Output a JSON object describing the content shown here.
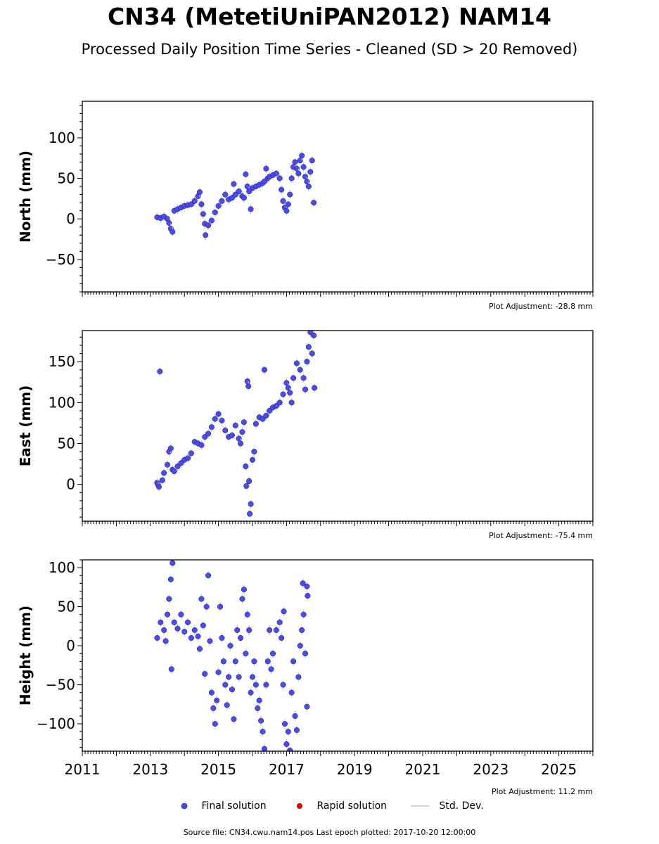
{
  "header": {
    "title": "CN34 (MetetiUniPAN2012) NAM14",
    "subtitle": "Processed Daily Position Time Series - Cleaned (SD > 20 Removed)"
  },
  "colors": {
    "final": "#4a4af5",
    "rapid": "#e00000",
    "stddev": "#c8c8c8",
    "edge": "#1a1a4a"
  },
  "legend": {
    "final": "Final solution",
    "rapid": "Rapid solution",
    "stddev": "Std. Dev."
  },
  "footer": {
    "source": "Source file: CN34.cwu.nam14.pos  Last epoch plotted: 2017-10-20 12:00:00"
  },
  "chart_data": [
    {
      "type": "scatter",
      "id": "north",
      "ylabel": "North (mm)",
      "adjustment": "Plot Adjustment: -28.8 mm",
      "xlim": [
        2011,
        2026
      ],
      "ylim": [
        -90,
        145
      ],
      "yticks": [
        -50,
        0,
        50,
        100
      ],
      "x_tick_labels_shown": false,
      "series": [
        {
          "values": [
            [
              2013.2,
              2
            ],
            [
              2013.3,
              1
            ],
            [
              2013.4,
              3
            ],
            [
              2013.5,
              0
            ],
            [
              2013.55,
              -5
            ],
            [
              2013.6,
              -12
            ],
            [
              2013.65,
              -16
            ],
            [
              2013.7,
              10
            ],
            [
              2013.8,
              12
            ],
            [
              2013.9,
              14
            ],
            [
              2014.0,
              16
            ],
            [
              2014.1,
              17
            ],
            [
              2014.2,
              18
            ],
            [
              2014.3,
              22
            ],
            [
              2014.4,
              28
            ],
            [
              2014.45,
              33
            ],
            [
              2014.5,
              18
            ],
            [
              2014.55,
              6
            ],
            [
              2014.6,
              -6
            ],
            [
              2014.62,
              -20
            ],
            [
              2014.7,
              -8
            ],
            [
              2014.8,
              -2
            ],
            [
              2014.9,
              8
            ],
            [
              2015.0,
              16
            ],
            [
              2015.1,
              22
            ],
            [
              2015.2,
              30
            ],
            [
              2015.3,
              24
            ],
            [
              2015.4,
              26
            ],
            [
              2015.45,
              43
            ],
            [
              2015.5,
              30
            ],
            [
              2015.6,
              34
            ],
            [
              2015.7,
              28
            ],
            [
              2015.75,
              26
            ],
            [
              2015.8,
              55
            ],
            [
              2015.85,
              40
            ],
            [
              2015.9,
              34
            ],
            [
              2015.95,
              12
            ],
            [
              2016.0,
              38
            ],
            [
              2016.1,
              40
            ],
            [
              2016.2,
              42
            ],
            [
              2016.3,
              44
            ],
            [
              2016.35,
              46
            ],
            [
              2016.4,
              62
            ],
            [
              2016.45,
              50
            ],
            [
              2016.5,
              52
            ],
            [
              2016.6,
              54
            ],
            [
              2016.7,
              56
            ],
            [
              2016.8,
              50
            ],
            [
              2016.85,
              36
            ],
            [
              2016.9,
              22
            ],
            [
              2016.95,
              14
            ],
            [
              2017.0,
              10
            ],
            [
              2017.05,
              18
            ],
            [
              2017.1,
              30
            ],
            [
              2017.15,
              50
            ],
            [
              2017.2,
              64
            ],
            [
              2017.25,
              70
            ],
            [
              2017.3,
              62
            ],
            [
              2017.35,
              56
            ],
            [
              2017.4,
              72
            ],
            [
              2017.45,
              78
            ],
            [
              2017.5,
              64
            ],
            [
              2017.55,
              52
            ],
            [
              2017.6,
              46
            ],
            [
              2017.65,
              40
            ],
            [
              2017.7,
              58
            ],
            [
              2017.75,
              72
            ],
            [
              2017.8,
              20
            ]
          ]
        }
      ]
    },
    {
      "type": "scatter",
      "id": "east",
      "ylabel": "East (mm)",
      "adjustment": "Plot Adjustment: -75.4 mm",
      "xlim": [
        2011,
        2026
      ],
      "ylim": [
        -45,
        188
      ],
      "yticks": [
        0,
        50,
        100,
        150
      ],
      "x_tick_labels_shown": false,
      "series": [
        {
          "values": [
            [
              2013.2,
              2
            ],
            [
              2013.22,
              0
            ],
            [
              2013.25,
              -3
            ],
            [
              2013.28,
              138
            ],
            [
              2013.35,
              5
            ],
            [
              2013.4,
              14
            ],
            [
              2013.5,
              24
            ],
            [
              2013.55,
              40
            ],
            [
              2013.6,
              44
            ],
            [
              2013.65,
              18
            ],
            [
              2013.7,
              16
            ],
            [
              2013.8,
              22
            ],
            [
              2013.9,
              26
            ],
            [
              2014.0,
              30
            ],
            [
              2014.1,
              32
            ],
            [
              2014.2,
              38
            ],
            [
              2014.3,
              52
            ],
            [
              2014.4,
              50
            ],
            [
              2014.5,
              48
            ],
            [
              2014.6,
              58
            ],
            [
              2014.7,
              62
            ],
            [
              2014.8,
              70
            ],
            [
              2014.9,
              80
            ],
            [
              2015.0,
              86
            ],
            [
              2015.1,
              78
            ],
            [
              2015.2,
              66
            ],
            [
              2015.3,
              58
            ],
            [
              2015.4,
              60
            ],
            [
              2015.5,
              72
            ],
            [
              2015.6,
              56
            ],
            [
              2015.65,
              50
            ],
            [
              2015.7,
              64
            ],
            [
              2015.75,
              76
            ],
            [
              2015.8,
              22
            ],
            [
              2015.82,
              -2
            ],
            [
              2015.85,
              126
            ],
            [
              2015.88,
              120
            ],
            [
              2015.9,
              4
            ],
            [
              2015.95,
              -24
            ],
            [
              2015.92,
              -36
            ],
            [
              2016.0,
              30
            ],
            [
              2016.05,
              40
            ],
            [
              2016.1,
              74
            ],
            [
              2016.2,
              82
            ],
            [
              2016.3,
              80
            ],
            [
              2016.35,
              140
            ],
            [
              2016.4,
              84
            ],
            [
              2016.5,
              90
            ],
            [
              2016.6,
              94
            ],
            [
              2016.7,
              96
            ],
            [
              2016.8,
              100
            ],
            [
              2016.9,
              110
            ],
            [
              2017.0,
              124
            ],
            [
              2017.05,
              118
            ],
            [
              2017.1,
              112
            ],
            [
              2017.15,
              100
            ],
            [
              2017.2,
              130
            ],
            [
              2017.3,
              148
            ],
            [
              2017.4,
              140
            ],
            [
              2017.5,
              130
            ],
            [
              2017.55,
              116
            ],
            [
              2017.6,
              150
            ],
            [
              2017.65,
              168
            ],
            [
              2017.7,
              186
            ],
            [
              2017.75,
              160
            ],
            [
              2017.8,
              182
            ],
            [
              2017.82,
              118
            ]
          ]
        }
      ]
    },
    {
      "type": "scatter",
      "id": "height",
      "ylabel": "Height (mm)",
      "adjustment": "Plot Adjustment: 11.2 mm",
      "xlim": [
        2011,
        2026
      ],
      "ylim": [
        -135,
        110
      ],
      "yticks": [
        -100,
        -50,
        0,
        50,
        100
      ],
      "x_tick_labels_shown": true,
      "x_tick_labels": [
        "2011",
        "2013",
        "2015",
        "2017",
        "2019",
        "2021",
        "2023",
        "2025"
      ],
      "series": [
        {
          "values": [
            [
              2013.2,
              10
            ],
            [
              2013.3,
              30
            ],
            [
              2013.4,
              20
            ],
            [
              2013.45,
              6
            ],
            [
              2013.5,
              40
            ],
            [
              2013.55,
              60
            ],
            [
              2013.6,
              85
            ],
            [
              2013.65,
              106
            ],
            [
              2013.62,
              -30
            ],
            [
              2013.7,
              30
            ],
            [
              2013.8,
              22
            ],
            [
              2013.9,
              40
            ],
            [
              2014.0,
              18
            ],
            [
              2014.1,
              30
            ],
            [
              2014.2,
              10
            ],
            [
              2014.3,
              20
            ],
            [
              2014.4,
              12
            ],
            [
              2014.45,
              -4
            ],
            [
              2014.5,
              60
            ],
            [
              2014.55,
              26
            ],
            [
              2014.6,
              -36
            ],
            [
              2014.65,
              50
            ],
            [
              2014.7,
              90
            ],
            [
              2014.75,
              6
            ],
            [
              2014.8,
              -60
            ],
            [
              2014.85,
              -80
            ],
            [
              2014.9,
              -100
            ],
            [
              2014.95,
              -70
            ],
            [
              2015.0,
              -34
            ],
            [
              2015.05,
              50
            ],
            [
              2015.1,
              10
            ],
            [
              2015.15,
              -20
            ],
            [
              2015.2,
              -50
            ],
            [
              2015.25,
              -76
            ],
            [
              2015.3,
              -40
            ],
            [
              2015.35,
              0
            ],
            [
              2015.4,
              -56
            ],
            [
              2015.45,
              -94
            ],
            [
              2015.5,
              -20
            ],
            [
              2015.55,
              20
            ],
            [
              2015.6,
              -40
            ],
            [
              2015.65,
              10
            ],
            [
              2015.7,
              60
            ],
            [
              2015.75,
              72
            ],
            [
              2015.8,
              -10
            ],
            [
              2015.85,
              40
            ],
            [
              2015.9,
              20
            ],
            [
              2015.95,
              -60
            ],
            [
              2016.0,
              -40
            ],
            [
              2016.05,
              -20
            ],
            [
              2016.1,
              -50
            ],
            [
              2016.15,
              -80
            ],
            [
              2016.2,
              -70
            ],
            [
              2016.25,
              -96
            ],
            [
              2016.3,
              -110
            ],
            [
              2016.35,
              -132
            ],
            [
              2016.4,
              -50
            ],
            [
              2016.45,
              -20
            ],
            [
              2016.5,
              20
            ],
            [
              2016.55,
              -30
            ],
            [
              2016.6,
              -10
            ],
            [
              2016.7,
              20
            ],
            [
              2016.8,
              30
            ],
            [
              2016.85,
              10
            ],
            [
              2016.9,
              -50
            ],
            [
              2016.92,
              44
            ],
            [
              2016.95,
              -100
            ],
            [
              2017.0,
              -126
            ],
            [
              2017.05,
              -110
            ],
            [
              2017.1,
              -134
            ],
            [
              2017.15,
              -60
            ],
            [
              2017.2,
              -20
            ],
            [
              2017.25,
              -90
            ],
            [
              2017.3,
              -108
            ],
            [
              2017.35,
              -40
            ],
            [
              2017.4,
              0
            ],
            [
              2017.45,
              20
            ],
            [
              2017.48,
              80
            ],
            [
              2017.5,
              40
            ],
            [
              2017.55,
              -10
            ],
            [
              2017.6,
              76
            ],
            [
              2017.62,
              64
            ],
            [
              2017.6,
              -78
            ]
          ]
        }
      ]
    }
  ]
}
